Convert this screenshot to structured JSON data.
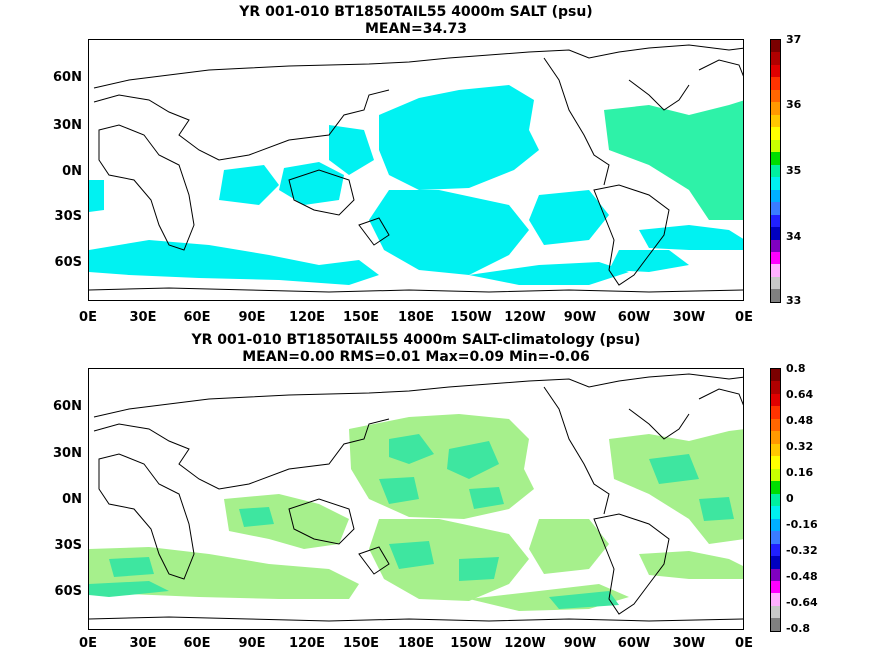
{
  "panels": [
    {
      "title1": "YR 001-010 BT1850TAIL55 4000m SALT (psu)",
      "title2": "MEAN=34.73",
      "colorbar_labels": [
        "37",
        "36",
        "35",
        "34",
        "33"
      ],
      "field_color": "#00f2f2",
      "colorbar_colors": [
        "#7a0000",
        "#b00000",
        "#e00000",
        "#ff3300",
        "#ff6600",
        "#ff9900",
        "#ffc800",
        "#ffff00",
        "#c8ff00",
        "#00dd00",
        "#00f0a0",
        "#00f0f0",
        "#00b0ff",
        "#3a7cff",
        "#2020ff",
        "#0000c0",
        "#8000c0",
        "#ff00ff",
        "#ffb0ff",
        "#c8c8c8",
        "#808080"
      ]
    },
    {
      "title1": "YR 001-010 BT1850TAIL55 4000m SALT-climatology (psu)",
      "title2": "MEAN=0.00   RMS=0.01   Max=0.09   Min=-0.06",
      "colorbar_labels": [
        "0.8",
        "0.64",
        "0.48",
        "0.32",
        "0.16",
        "0",
        "-0.16",
        "-0.32",
        "-0.48",
        "-0.64",
        "-0.8"
      ],
      "field_color": "#a6f08c",
      "field_color_2": "#3ee6a0",
      "colorbar_colors": [
        "#7a0000",
        "#b00000",
        "#e00000",
        "#ff3300",
        "#ff6600",
        "#ff9900",
        "#ffc800",
        "#ffff00",
        "#c8ff00",
        "#00dd00",
        "#00f0a0",
        "#00f0f0",
        "#00b0ff",
        "#3a7cff",
        "#2020ff",
        "#0000c0",
        "#8000c0",
        "#ff00ff",
        "#ffb0ff",
        "#c8c8c8",
        "#808080"
      ]
    }
  ],
  "lat_labels": [
    "60N",
    "30N",
    "0N",
    "30S",
    "60S"
  ],
  "lon_labels": [
    "0E",
    "30E",
    "60E",
    "90E",
    "120E",
    "150E",
    "180E",
    "150W",
    "120W",
    "90W",
    "60W",
    "30W",
    "0E"
  ]
}
